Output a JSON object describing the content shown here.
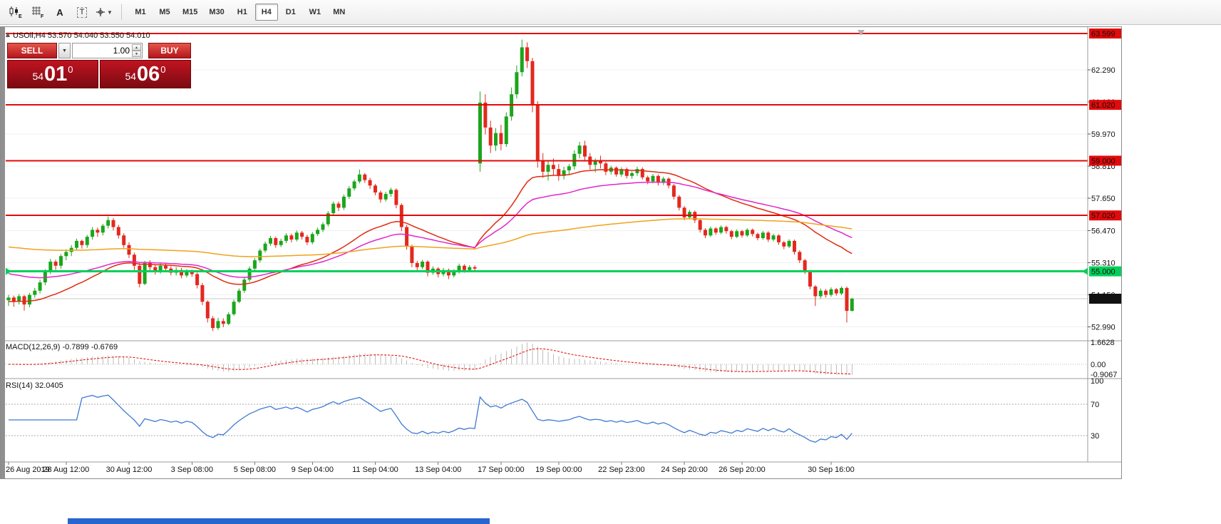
{
  "toolbar": {
    "icon_labels": {
      "e": "E",
      "f": "F",
      "a": "A",
      "t": "T"
    },
    "timeframes": [
      "M1",
      "M5",
      "M15",
      "M30",
      "H1",
      "H4",
      "D1",
      "W1",
      "MN"
    ],
    "active_timeframe": "H4"
  },
  "quote": {
    "symbol": "USOil,H4",
    "open": "53.570",
    "high": "54.040",
    "low": "53.550",
    "close": "54.010"
  },
  "trade_panel": {
    "sell_label": "SELL",
    "buy_label": "BUY",
    "volume": "1.00",
    "sell_price": {
      "main": "54",
      "pips": "01",
      "pip_fraction": "0"
    },
    "buy_price": {
      "main": "54",
      "pips": "06",
      "pip_fraction": "0"
    }
  },
  "colors": {
    "level_red": "#e20a0a",
    "level_green": "#00d05a",
    "candle_up": "#1ca51c",
    "candle_down": "#e3281e",
    "ma_fast": "#e02a10",
    "ma_medium": "#e226c9",
    "ma_slow": "#efa21c",
    "rsi_line": "#3e79d2",
    "macd_signal": "#e00000",
    "macd_bars": "#bdbdbd",
    "current_badge": "#111111",
    "bid_line": "#c8c8c8"
  },
  "chart_data": {
    "type": "candlestick",
    "symbol": "USOil",
    "timeframe": "H4",
    "price_axis": {
      "ticks": [
        "62.290",
        "61.130",
        "59.970",
        "58.810",
        "57.650",
        "56.470",
        "55.310",
        "54.150",
        "52.990"
      ]
    },
    "levels": [
      {
        "label": "63.599",
        "price": 63.599,
        "kind": "resistance",
        "color": "#e20a0a"
      },
      {
        "label": "61.020",
        "price": 61.02,
        "kind": "resistance",
        "color": "#e20a0a"
      },
      {
        "label": "59.000",
        "price": 59.0,
        "kind": "resistance",
        "color": "#e20a0a"
      },
      {
        "label": "57.020",
        "price": 57.02,
        "kind": "resistance",
        "color": "#e20a0a"
      },
      {
        "label": "55.000",
        "price": 55.0,
        "kind": "support",
        "color": "#00d05a"
      }
    ],
    "current_price": {
      "label": "54.010",
      "value": 54.01
    },
    "moving_averages": [
      {
        "name": "fast",
        "method": "ema",
        "period": 34,
        "seed": 53.9,
        "color": "#e02a10"
      },
      {
        "name": "medium",
        "method": "ema",
        "period": 55,
        "seed": 54.95,
        "color": "#e226c9"
      },
      {
        "name": "slow",
        "method": "ema",
        "period": 200,
        "seed": 55.9,
        "color": "#efa21c"
      }
    ],
    "candles": [
      [
        53.95,
        54.15,
        53.75,
        54.05
      ],
      [
        54.05,
        54.12,
        53.72,
        53.9
      ],
      [
        53.9,
        54.18,
        53.8,
        54.1
      ],
      [
        54.1,
        54.15,
        53.58,
        53.8
      ],
      [
        53.8,
        54.22,
        53.7,
        54.15
      ],
      [
        54.15,
        54.4,
        54.05,
        54.3
      ],
      [
        54.3,
        54.7,
        54.2,
        54.6
      ],
      [
        54.6,
        55.08,
        54.5,
        55.0
      ],
      [
        55.0,
        55.45,
        54.9,
        55.35
      ],
      [
        55.35,
        55.42,
        55.05,
        55.2
      ],
      [
        55.2,
        55.62,
        55.1,
        55.55
      ],
      [
        55.55,
        55.8,
        55.4,
        55.7
      ],
      [
        55.7,
        55.95,
        55.55,
        55.85
      ],
      [
        55.85,
        56.18,
        55.75,
        56.1
      ],
      [
        56.1,
        56.15,
        55.82,
        55.95
      ],
      [
        55.95,
        56.32,
        55.85,
        56.25
      ],
      [
        56.25,
        56.6,
        56.15,
        56.5
      ],
      [
        56.5,
        56.58,
        56.25,
        56.4
      ],
      [
        56.4,
        56.72,
        56.3,
        56.65
      ],
      [
        56.65,
        56.98,
        56.55,
        56.85
      ],
      [
        56.85,
        56.92,
        56.48,
        56.6
      ],
      [
        56.6,
        56.68,
        56.18,
        56.3
      ],
      [
        56.3,
        56.38,
        55.85,
        55.95
      ],
      [
        55.95,
        56.05,
        55.48,
        55.6
      ],
      [
        55.6,
        55.68,
        55.05,
        55.2
      ],
      [
        55.2,
        55.3,
        54.42,
        54.55
      ],
      [
        54.55,
        55.38,
        54.5,
        55.3
      ],
      [
        55.3,
        55.4,
        55.02,
        55.15
      ],
      [
        55.15,
        55.25,
        54.88,
        55.0
      ],
      [
        55.0,
        55.28,
        54.92,
        55.2
      ],
      [
        55.2,
        55.3,
        54.98,
        55.1
      ],
      [
        55.1,
        55.18,
        54.85,
        54.95
      ],
      [
        54.95,
        55.15,
        54.85,
        55.05
      ],
      [
        55.05,
        55.12,
        54.75,
        54.85
      ],
      [
        54.85,
        55.08,
        54.78,
        55.0
      ],
      [
        55.0,
        55.06,
        54.8,
        54.9
      ],
      [
        54.9,
        54.95,
        54.38,
        54.5
      ],
      [
        54.5,
        54.58,
        53.78,
        53.9
      ],
      [
        53.9,
        53.95,
        53.15,
        53.3
      ],
      [
        53.3,
        53.38,
        52.84,
        52.95
      ],
      [
        52.95,
        53.32,
        52.88,
        53.2
      ],
      [
        53.2,
        53.3,
        52.98,
        53.1
      ],
      [
        53.1,
        53.52,
        53.05,
        53.45
      ],
      [
        53.45,
        53.98,
        53.4,
        53.9
      ],
      [
        53.9,
        54.38,
        53.85,
        54.3
      ],
      [
        54.3,
        54.78,
        54.22,
        54.7
      ],
      [
        54.7,
        55.18,
        54.62,
        55.1
      ],
      [
        55.1,
        55.48,
        55.02,
        55.4
      ],
      [
        55.4,
        55.82,
        55.32,
        55.75
      ],
      [
        55.75,
        56.08,
        55.68,
        56.0
      ],
      [
        56.0,
        56.28,
        55.92,
        56.2
      ],
      [
        56.2,
        56.26,
        55.85,
        55.95
      ],
      [
        55.95,
        56.18,
        55.88,
        56.1
      ],
      [
        56.1,
        56.38,
        56.02,
        56.3
      ],
      [
        56.3,
        56.36,
        56.05,
        56.15
      ],
      [
        56.15,
        56.48,
        56.08,
        56.4
      ],
      [
        56.4,
        56.46,
        56.15,
        56.25
      ],
      [
        56.25,
        56.32,
        55.95,
        56.05
      ],
      [
        56.05,
        56.42,
        55.98,
        56.35
      ],
      [
        56.35,
        56.58,
        56.28,
        56.5
      ],
      [
        56.5,
        56.78,
        56.42,
        56.7
      ],
      [
        56.7,
        57.18,
        56.62,
        57.1
      ],
      [
        57.1,
        57.52,
        57.02,
        57.45
      ],
      [
        57.45,
        57.52,
        57.18,
        57.3
      ],
      [
        57.3,
        57.78,
        57.22,
        57.7
      ],
      [
        57.7,
        58.08,
        57.62,
        58.0
      ],
      [
        58.0,
        58.32,
        57.92,
        58.25
      ],
      [
        58.25,
        58.68,
        58.18,
        58.5
      ],
      [
        58.5,
        58.56,
        58.2,
        58.3
      ],
      [
        58.3,
        58.38,
        57.98,
        58.1
      ],
      [
        58.1,
        58.16,
        57.75,
        57.85
      ],
      [
        57.85,
        57.92,
        57.48,
        57.6
      ],
      [
        57.6,
        57.88,
        57.52,
        57.8
      ],
      [
        57.8,
        58.02,
        57.7,
        57.95
      ],
      [
        57.95,
        58.0,
        57.28,
        57.4
      ],
      [
        57.4,
        57.46,
        56.45,
        56.6
      ],
      [
        56.6,
        56.68,
        55.78,
        55.9
      ],
      [
        55.9,
        55.96,
        55.15,
        55.3
      ],
      [
        55.3,
        55.38,
        55.0,
        55.15
      ],
      [
        55.15,
        55.42,
        55.08,
        55.35
      ],
      [
        55.35,
        55.4,
        54.82,
        54.95
      ],
      [
        54.95,
        55.18,
        54.88,
        55.1
      ],
      [
        55.1,
        55.15,
        54.78,
        54.9
      ],
      [
        54.9,
        55.12,
        54.82,
        55.05
      ],
      [
        55.05,
        55.1,
        54.72,
        54.85
      ],
      [
        54.85,
        55.08,
        54.78,
        55.0
      ],
      [
        55.0,
        55.28,
        54.92,
        55.2
      ],
      [
        55.2,
        55.26,
        54.95,
        55.05
      ],
      [
        55.05,
        55.22,
        54.98,
        55.15
      ],
      [
        55.15,
        55.22,
        54.98,
        55.1
      ],
      [
        58.9,
        61.5,
        58.6,
        61.1
      ],
      [
        61.1,
        61.4,
        59.95,
        60.2
      ],
      [
        60.2,
        60.45,
        59.28,
        59.55
      ],
      [
        59.55,
        60.18,
        59.35,
        60.0
      ],
      [
        60.0,
        60.3,
        59.38,
        59.6
      ],
      [
        59.6,
        60.75,
        59.5,
        60.6
      ],
      [
        60.6,
        61.65,
        60.45,
        61.4
      ],
      [
        61.4,
        62.45,
        61.25,
        62.2
      ],
      [
        62.2,
        63.38,
        62.05,
        63.1
      ],
      [
        63.1,
        63.28,
        62.35,
        62.6
      ],
      [
        62.6,
        62.72,
        60.75,
        61.0
      ],
      [
        61.0,
        61.15,
        58.75,
        59.0
      ],
      [
        59.0,
        59.28,
        58.38,
        58.6
      ],
      [
        58.6,
        58.98,
        58.28,
        58.85
      ],
      [
        58.85,
        59.08,
        58.48,
        58.7
      ],
      [
        58.7,
        58.88,
        58.28,
        58.45
      ],
      [
        58.45,
        58.78,
        58.32,
        58.65
      ],
      [
        58.65,
        58.88,
        58.48,
        58.8
      ],
      [
        58.8,
        59.38,
        58.68,
        59.25
      ],
      [
        59.25,
        59.68,
        59.08,
        59.55
      ],
      [
        59.55,
        59.72,
        58.98,
        59.15
      ],
      [
        59.15,
        59.28,
        58.68,
        58.85
      ],
      [
        58.85,
        59.08,
        58.58,
        59.0
      ],
      [
        59.0,
        59.18,
        58.72,
        58.9
      ],
      [
        58.9,
        58.96,
        58.48,
        58.6
      ],
      [
        58.6,
        58.82,
        58.5,
        58.75
      ],
      [
        58.75,
        58.8,
        58.42,
        58.5
      ],
      [
        58.5,
        58.76,
        58.42,
        58.7
      ],
      [
        58.7,
        58.76,
        58.36,
        58.45
      ],
      [
        58.45,
        58.62,
        58.35,
        58.55
      ],
      [
        58.55,
        58.78,
        58.45,
        58.7
      ],
      [
        58.7,
        58.76,
        58.32,
        58.4
      ],
      [
        58.4,
        58.46,
        58.15,
        58.25
      ],
      [
        58.25,
        58.52,
        58.18,
        58.45
      ],
      [
        58.45,
        58.5,
        58.1,
        58.2
      ],
      [
        58.2,
        58.42,
        58.12,
        58.35
      ],
      [
        58.35,
        58.4,
        58.0,
        58.1
      ],
      [
        58.1,
        58.16,
        57.6,
        57.7
      ],
      [
        57.7,
        57.76,
        57.2,
        57.3
      ],
      [
        57.3,
        57.36,
        56.85,
        56.95
      ],
      [
        56.95,
        57.22,
        56.88,
        57.15
      ],
      [
        57.15,
        57.2,
        56.75,
        56.85
      ],
      [
        56.85,
        56.9,
        56.4,
        56.5
      ],
      [
        56.5,
        56.56,
        56.2,
        56.3
      ],
      [
        56.3,
        56.62,
        56.24,
        56.55
      ],
      [
        56.55,
        56.6,
        56.32,
        56.4
      ],
      [
        56.4,
        56.66,
        56.34,
        56.6
      ],
      [
        56.6,
        56.65,
        56.36,
        56.45
      ],
      [
        56.45,
        56.5,
        56.16,
        56.25
      ],
      [
        56.25,
        56.52,
        56.2,
        56.45
      ],
      [
        56.45,
        56.5,
        56.22,
        56.3
      ],
      [
        56.3,
        56.56,
        56.24,
        56.5
      ],
      [
        56.5,
        56.55,
        56.26,
        56.35
      ],
      [
        56.35,
        56.4,
        56.12,
        56.2
      ],
      [
        56.2,
        56.46,
        56.14,
        56.4
      ],
      [
        56.4,
        56.45,
        56.06,
        56.15
      ],
      [
        56.15,
        56.36,
        56.08,
        56.3
      ],
      [
        56.3,
        56.34,
        55.96,
        56.05
      ],
      [
        56.05,
        56.1,
        55.8,
        55.9
      ],
      [
        55.9,
        56.16,
        55.84,
        56.1
      ],
      [
        56.1,
        56.15,
        55.6,
        55.7
      ],
      [
        55.7,
        55.76,
        55.3,
        55.4
      ],
      [
        55.4,
        55.45,
        54.9,
        55.0
      ],
      [
        55.0,
        55.05,
        54.35,
        54.45
      ],
      [
        54.45,
        54.5,
        53.75,
        54.1
      ],
      [
        54.1,
        54.38,
        54.02,
        54.3
      ],
      [
        54.3,
        54.36,
        54.05,
        54.15
      ],
      [
        54.15,
        54.42,
        54.08,
        54.35
      ],
      [
        54.35,
        54.4,
        54.12,
        54.2
      ],
      [
        54.2,
        54.46,
        54.14,
        54.4
      ],
      [
        54.4,
        54.45,
        53.15,
        53.57
      ],
      [
        53.57,
        54.04,
        53.55,
        54.01
      ]
    ],
    "time_labels": [
      [
        0,
        "26 Aug 2019"
      ],
      [
        11,
        "28 Aug 12:00"
      ],
      [
        23,
        "30 Aug 12:00"
      ],
      [
        35,
        "3 Sep 08:00"
      ],
      [
        47,
        "5 Sep 08:00"
      ],
      [
        58,
        "9 Sep 04:00"
      ],
      [
        70,
        "11 Sep 04:00"
      ],
      [
        82,
        "13 Sep 04:00"
      ],
      [
        94,
        "17 Sep 00:00"
      ],
      [
        105,
        "19 Sep 00:00"
      ],
      [
        117,
        "22 Sep 23:00"
      ],
      [
        129,
        "24 Sep 20:00"
      ],
      [
        140,
        "26 Sep 20:00"
      ],
      [
        157,
        "30 Sep 16:00"
      ]
    ],
    "macd": {
      "label": "MACD(12,26,9)",
      "values_text": "-0.7899 -0.6769",
      "params": [
        12,
        26,
        9
      ],
      "axis_labels": [
        "1.6628",
        "0.00",
        "-0.9067"
      ],
      "axis_max": 1.6628,
      "axis_min": -0.9067
    },
    "rsi": {
      "label": "RSI(14)",
      "value_text": "32.0405",
      "period": 14,
      "levels": [
        "100",
        "70",
        "30"
      ]
    }
  }
}
